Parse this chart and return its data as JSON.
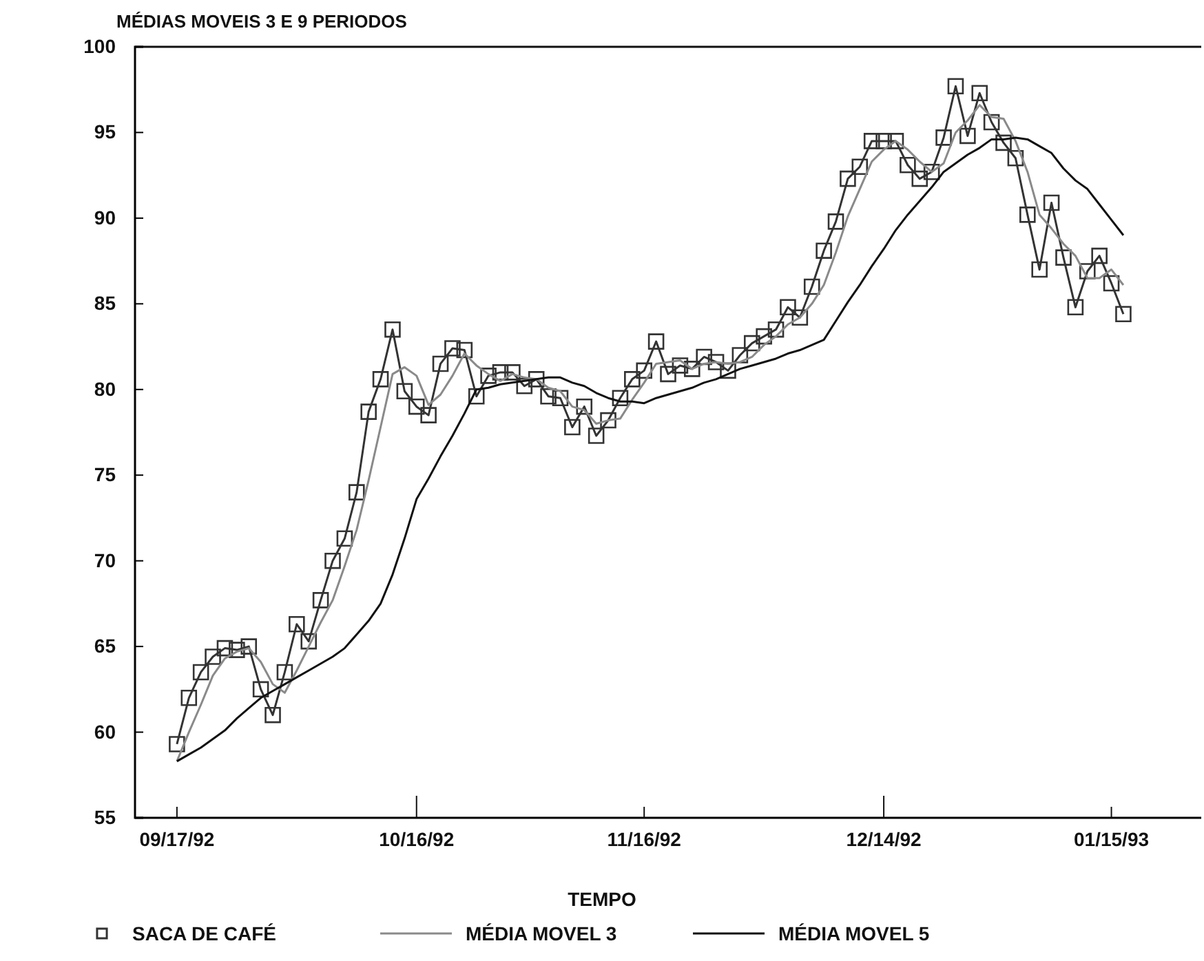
{
  "chart_data": {
    "type": "line",
    "title": "MÉDIAS MOVEIS 3 E 9 PERIODOS",
    "xlabel": "TEMPO",
    "categories": [
      "09/17/92",
      null,
      null,
      null,
      null,
      null,
      null,
      null,
      null,
      null,
      null,
      null,
      null,
      null,
      null,
      null,
      null,
      null,
      null,
      null,
      "10/16/92",
      null,
      null,
      null,
      null,
      null,
      null,
      null,
      null,
      null,
      null,
      null,
      null,
      null,
      null,
      null,
      null,
      null,
      null,
      "11/16/92",
      null,
      null,
      null,
      null,
      null,
      null,
      null,
      null,
      null,
      null,
      null,
      null,
      null,
      null,
      null,
      null,
      null,
      null,
      null,
      "12/14/92",
      null,
      null,
      null,
      null,
      null,
      null,
      null,
      null,
      null,
      null,
      null,
      null,
      null,
      null,
      null,
      null,
      null,
      null,
      "01/15/93",
      null
    ],
    "ylim": [
      55,
      100
    ],
    "yticks": [
      55,
      60,
      65,
      70,
      75,
      80,
      85,
      90,
      95,
      100
    ],
    "grid": false,
    "legend": "bottom",
    "series": [
      {
        "name": "SACA DE CAFÉ",
        "color": "#333333",
        "marker": "square",
        "values": [
          59.3,
          62.0,
          63.5,
          64.4,
          64.9,
          64.8,
          65.0,
          62.5,
          61.0,
          63.5,
          66.3,
          65.3,
          67.7,
          70.0,
          71.3,
          74.0,
          78.7,
          80.6,
          83.5,
          79.9,
          79.0,
          78.5,
          81.5,
          82.4,
          82.3,
          79.6,
          80.8,
          81.0,
          81.0,
          80.2,
          80.6,
          79.6,
          79.5,
          77.8,
          79.0,
          77.3,
          78.2,
          79.5,
          80.6,
          81.1,
          82.8,
          80.9,
          81.4,
          81.2,
          81.9,
          81.6,
          81.1,
          82.0,
          82.7,
          83.1,
          83.5,
          84.8,
          84.2,
          86.0,
          88.1,
          89.8,
          92.3,
          93.0,
          94.5,
          94.5,
          94.5,
          93.1,
          92.3,
          92.7,
          94.7,
          97.7,
          94.8,
          97.3,
          95.6,
          94.4,
          93.5,
          90.2,
          87.0,
          90.9,
          87.7,
          84.8,
          86.9,
          87.8,
          86.2,
          84.4
        ]
      },
      {
        "name": "MÉDIA MOVEL 3",
        "color": "#8a8a8a",
        "marker": "none",
        "values": [
          58.3,
          60.0,
          61.6,
          63.3,
          64.3,
          64.7,
          64.9,
          64.1,
          62.8,
          62.3,
          63.6,
          65.0,
          66.4,
          67.7,
          69.7,
          71.8,
          74.7,
          77.8,
          80.9,
          81.3,
          80.8,
          79.1,
          79.7,
          80.8,
          82.1,
          81.4,
          80.9,
          80.5,
          80.9,
          80.7,
          80.6,
          80.1,
          79.9,
          79.0,
          78.8,
          78.0,
          78.2,
          78.3,
          79.4,
          80.4,
          81.5,
          81.6,
          81.7,
          81.2,
          81.5,
          81.6,
          81.5,
          81.6,
          81.9,
          82.6,
          83.1,
          83.8,
          84.2,
          85.0,
          86.1,
          88.0,
          90.1,
          91.7,
          93.3,
          94.0,
          94.5,
          94.0,
          93.3,
          92.7,
          93.2,
          95.0,
          95.7,
          96.6,
          95.9,
          95.8,
          94.5,
          92.7,
          90.2,
          89.4,
          88.5,
          87.8,
          86.5,
          86.5,
          87.0,
          86.1
        ]
      },
      {
        "name": "MÉDIA MOVEL 5",
        "color": "#111111",
        "marker": "none",
        "values": [
          58.3,
          58.7,
          59.1,
          59.6,
          60.1,
          60.8,
          61.4,
          62.0,
          62.4,
          62.8,
          63.2,
          63.6,
          64.0,
          64.4,
          64.9,
          65.7,
          66.5,
          67.5,
          69.2,
          71.3,
          73.6,
          74.8,
          76.1,
          77.3,
          78.6,
          80.0,
          80.1,
          80.3,
          80.4,
          80.5,
          80.6,
          80.7,
          80.7,
          80.4,
          80.2,
          79.8,
          79.5,
          79.3,
          79.3,
          79.2,
          79.5,
          79.7,
          79.9,
          80.1,
          80.4,
          80.6,
          80.9,
          81.2,
          81.4,
          81.6,
          81.8,
          82.1,
          82.3,
          82.6,
          82.9,
          84.0,
          85.1,
          86.1,
          87.2,
          88.2,
          89.3,
          90.2,
          91.0,
          91.8,
          92.7,
          93.2,
          93.7,
          94.1,
          94.6,
          94.6,
          94.7,
          94.6,
          94.2,
          93.8,
          92.9,
          92.2,
          91.7,
          90.8,
          89.9,
          89.0
        ]
      }
    ]
  }
}
